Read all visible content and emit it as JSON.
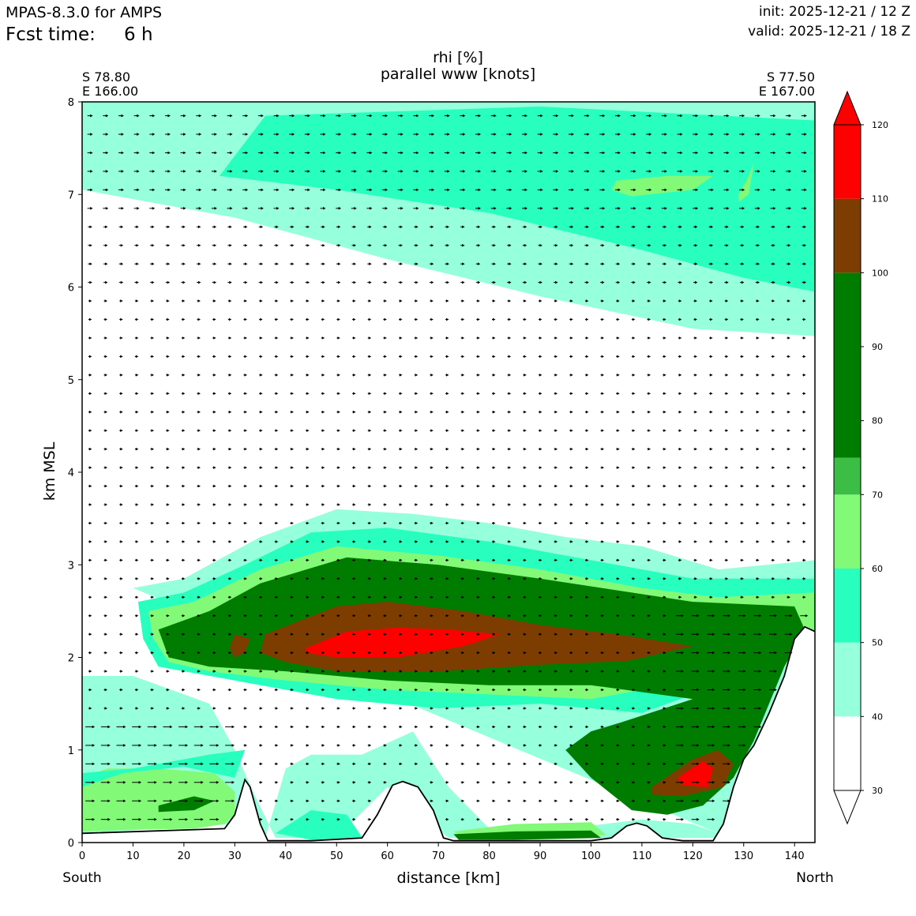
{
  "header": {
    "model": "MPAS-8.3.0 for AMPS",
    "fcst_label": "Fcst time:",
    "fcst_value": "6 h",
    "init": "init: 2025-12-21 / 12 Z",
    "valid": "valid: 2025-12-21 / 18 Z"
  },
  "colors": {
    "c30_40": "#ffffff",
    "c40_50": "#96ffdc",
    "c50_60": "#28ffbe",
    "c60_70": "#82fa78",
    "c70_75": "#3cbe46",
    "c75_100": "#007d00",
    "c100_110": "#7d3c00",
    "c110_120": "#ff0000"
  },
  "chart_data": {
    "type": "cross-section contour",
    "title_lines": [
      "rhi [%]",
      "parallel www [knots]"
    ],
    "xlabel": "distance [km]",
    "ylabel": "km MSL",
    "xlim": [
      0,
      144
    ],
    "ylim": [
      0,
      8
    ],
    "x_ticks": [
      0,
      10,
      20,
      30,
      40,
      50,
      60,
      70,
      80,
      90,
      100,
      110,
      120,
      130,
      140
    ],
    "y_ticks": [
      0,
      1,
      2,
      3,
      4,
      5,
      6,
      7,
      8
    ],
    "left_end": {
      "lat": "S 78.80",
      "lon": "E 166.00",
      "direction": "South"
    },
    "right_end": {
      "lat": "S 77.50",
      "lon": "E 167.00",
      "direction": "North"
    },
    "colorbar": {
      "ticks": [
        30,
        40,
        50,
        60,
        70,
        80,
        90,
        100,
        110,
        120
      ],
      "bounds": [
        30,
        40,
        50,
        60,
        70,
        75,
        100,
        110,
        120
      ],
      "colors": [
        "#ffffff",
        "#96ffdc",
        "#28ffbe",
        "#82fa78",
        "#3cbe46",
        "#007d00",
        "#7d3c00",
        "#ff0000"
      ],
      "extend": "both"
    },
    "terrain_km": [
      [
        0,
        0.1
      ],
      [
        28,
        0.15
      ],
      [
        30,
        0.3
      ],
      [
        32,
        0.68
      ],
      [
        33,
        0.6
      ],
      [
        35,
        0.2
      ],
      [
        36.5,
        0.02
      ],
      [
        38,
        0.02
      ],
      [
        45,
        0.02
      ],
      [
        55,
        0.05
      ],
      [
        58,
        0.3
      ],
      [
        61,
        0.62
      ],
      [
        63,
        0.66
      ],
      [
        66,
        0.6
      ],
      [
        69,
        0.35
      ],
      [
        71,
        0.05
      ],
      [
        73,
        0.02
      ],
      [
        100,
        0.02
      ],
      [
        104,
        0.05
      ],
      [
        107,
        0.18
      ],
      [
        109,
        0.21
      ],
      [
        111,
        0.18
      ],
      [
        114,
        0.05
      ],
      [
        118,
        0.02
      ],
      [
        124,
        0.02
      ],
      [
        126,
        0.2
      ],
      [
        128,
        0.6
      ],
      [
        130,
        0.9
      ],
      [
        132,
        1.05
      ],
      [
        135,
        1.4
      ],
      [
        138,
        1.8
      ],
      [
        140,
        2.2
      ],
      [
        142,
        2.33
      ],
      [
        144,
        2.28
      ]
    ],
    "rhi_polygons_km": [
      {
        "level": "40-50",
        "points": [
          [
            0,
            8
          ],
          [
            144,
            8
          ],
          [
            144,
            5.47
          ],
          [
            120,
            5.55
          ],
          [
            90,
            5.9
          ],
          [
            60,
            6.3
          ],
          [
            30,
            6.75
          ],
          [
            10,
            6.95
          ],
          [
            0,
            7.05
          ]
        ]
      },
      {
        "level": "50-60",
        "points": [
          [
            36,
            7.85
          ],
          [
            90,
            7.95
          ],
          [
            144,
            7.8
          ],
          [
            144,
            5.95
          ],
          [
            130,
            6.1
          ],
          [
            110,
            6.4
          ],
          [
            80,
            6.8
          ],
          [
            50,
            7.05
          ],
          [
            27,
            7.2
          ]
        ]
      },
      {
        "level": "60-70",
        "points": [
          [
            105,
            7.15
          ],
          [
            115,
            7.2
          ],
          [
            124,
            7.2
          ],
          [
            120,
            7.05
          ],
          [
            108,
            6.98
          ],
          [
            104,
            7.05
          ]
        ]
      },
      {
        "level": "60-70",
        "points": [
          [
            129,
            7.0
          ],
          [
            131,
            7.2
          ],
          [
            132,
            7.35
          ],
          [
            131,
            7.0
          ],
          [
            129,
            6.92
          ]
        ]
      },
      {
        "level": "40-50",
        "points": [
          [
            10,
            2.75
          ],
          [
            20,
            2.85
          ],
          [
            35,
            3.3
          ],
          [
            50,
            3.6
          ],
          [
            65,
            3.55
          ],
          [
            80,
            3.45
          ],
          [
            95,
            3.3
          ],
          [
            110,
            3.2
          ],
          [
            125,
            2.95
          ],
          [
            144,
            3.05
          ],
          [
            144,
            0.05
          ],
          [
            72,
            0.05
          ],
          [
            60,
            0.6
          ],
          [
            50,
            0.05
          ],
          [
            38,
            0.05
          ],
          [
            34,
            0.5
          ],
          [
            30,
            1.0
          ],
          [
            25,
            1.5
          ],
          [
            10,
            1.8
          ],
          [
            0,
            1.8
          ],
          [
            0,
            0.1
          ],
          [
            30,
            0.2
          ],
          [
            32,
            0.7
          ],
          [
            36,
            0.05
          ],
          [
            40,
            0.8
          ],
          [
            45,
            0.95
          ],
          [
            55,
            0.95
          ],
          [
            65,
            1.2
          ],
          [
            72,
            0.6
          ],
          [
            80,
            0.15
          ],
          [
            95,
            0.15
          ],
          [
            110,
            0.25
          ],
          [
            120,
            0.2
          ],
          [
            125,
            0.1
          ]
        ]
      },
      {
        "level": "50-60",
        "points": [
          [
            11,
            2.6
          ],
          [
            20,
            2.7
          ],
          [
            32,
            3.0
          ],
          [
            45,
            3.35
          ],
          [
            60,
            3.4
          ],
          [
            80,
            3.25
          ],
          [
            100,
            3.05
          ],
          [
            120,
            2.85
          ],
          [
            144,
            2.85
          ],
          [
            144,
            2.35
          ],
          [
            130,
            2.0
          ],
          [
            125,
            1.7
          ],
          [
            110,
            1.4
          ],
          [
            90,
            1.5
          ],
          [
            70,
            1.45
          ],
          [
            50,
            1.55
          ],
          [
            30,
            1.75
          ],
          [
            15,
            1.9
          ],
          [
            12,
            2.2
          ]
        ]
      },
      {
        "level": "60-70",
        "points": [
          [
            13,
            2.5
          ],
          [
            22,
            2.6
          ],
          [
            35,
            2.95
          ],
          [
            50,
            3.2
          ],
          [
            70,
            3.1
          ],
          [
            90,
            2.95
          ],
          [
            110,
            2.75
          ],
          [
            125,
            2.65
          ],
          [
            144,
            2.7
          ],
          [
            144,
            2.3
          ],
          [
            132,
            2.0
          ],
          [
            120,
            1.75
          ],
          [
            100,
            1.55
          ],
          [
            80,
            1.6
          ],
          [
            60,
            1.65
          ],
          [
            40,
            1.75
          ],
          [
            25,
            1.85
          ],
          [
            17,
            1.95
          ],
          [
            14,
            2.2
          ]
        ]
      },
      {
        "level": "75-100",
        "points": [
          [
            15,
            2.3
          ],
          [
            25,
            2.5
          ],
          [
            35,
            2.8
          ],
          [
            52,
            3.08
          ],
          [
            70,
            3.0
          ],
          [
            90,
            2.85
          ],
          [
            108,
            2.7
          ],
          [
            120,
            2.6
          ],
          [
            140,
            2.55
          ],
          [
            142,
            2.3
          ],
          [
            138,
            1.9
          ],
          [
            132,
            1.1
          ],
          [
            128,
            0.7
          ],
          [
            122,
            0.4
          ],
          [
            115,
            0.3
          ],
          [
            108,
            0.35
          ],
          [
            100,
            0.7
          ],
          [
            95,
            1.0
          ],
          [
            100,
            1.2
          ],
          [
            106,
            1.3
          ],
          [
            120,
            1.55
          ],
          [
            100,
            1.7
          ],
          [
            80,
            1.7
          ],
          [
            60,
            1.75
          ],
          [
            40,
            1.85
          ],
          [
            25,
            1.9
          ],
          [
            17,
            2.0
          ]
        ]
      },
      {
        "level": "100-110",
        "points": [
          [
            36,
            2.25
          ],
          [
            50,
            2.55
          ],
          [
            60,
            2.6
          ],
          [
            75,
            2.5
          ],
          [
            90,
            2.35
          ],
          [
            105,
            2.25
          ],
          [
            120,
            2.12
          ],
          [
            107,
            1.96
          ],
          [
            90,
            1.92
          ],
          [
            70,
            1.85
          ],
          [
            50,
            1.85
          ],
          [
            40,
            1.95
          ],
          [
            35,
            2.05
          ]
        ]
      },
      {
        "level": "100-110",
        "points": [
          [
            30,
            2.25
          ],
          [
            33,
            2.2
          ],
          [
            32,
            2.05
          ],
          [
            30,
            2.0
          ],
          [
            29,
            2.1
          ]
        ]
      },
      {
        "level": "110-120",
        "points": [
          [
            44,
            2.1
          ],
          [
            52,
            2.28
          ],
          [
            62,
            2.32
          ],
          [
            72,
            2.3
          ],
          [
            82,
            2.25
          ],
          [
            75,
            2.12
          ],
          [
            62,
            2.0
          ],
          [
            50,
            2.0
          ],
          [
            44,
            2.05
          ]
        ]
      },
      {
        "level": "100-110",
        "points": [
          [
            112,
            0.6
          ],
          [
            120,
            0.9
          ],
          [
            125,
            1.0
          ],
          [
            128,
            0.85
          ],
          [
            126,
            0.6
          ],
          [
            118,
            0.5
          ],
          [
            112,
            0.52
          ]
        ]
      },
      {
        "level": "110-120",
        "points": [
          [
            117,
            0.7
          ],
          [
            122,
            0.88
          ],
          [
            124,
            0.8
          ],
          [
            123,
            0.6
          ],
          [
            118,
            0.62
          ]
        ]
      },
      {
        "level": "60-70",
        "points": [
          [
            0,
            0.12
          ],
          [
            12,
            0.14
          ],
          [
            22,
            0.15
          ],
          [
            28,
            0.2
          ],
          [
            30,
            0.3
          ],
          [
            30,
            0.55
          ],
          [
            26,
            0.75
          ],
          [
            15,
            0.8
          ],
          [
            5,
            0.8
          ],
          [
            0,
            0.7
          ]
        ]
      },
      {
        "level": "75-100",
        "points": [
          [
            15,
            0.4
          ],
          [
            22,
            0.5
          ],
          [
            26,
            0.45
          ],
          [
            22,
            0.35
          ],
          [
            15,
            0.33
          ]
        ]
      },
      {
        "level": "50-60",
        "points": [
          [
            0,
            0.75
          ],
          [
            10,
            0.8
          ],
          [
            25,
            0.95
          ],
          [
            32,
            1.0
          ],
          [
            30,
            0.7
          ],
          [
            20,
            0.82
          ],
          [
            8,
            0.75
          ],
          [
            0,
            0.6
          ]
        ]
      },
      {
        "level": "50-60",
        "points": [
          [
            38,
            0.1
          ],
          [
            45,
            0.35
          ],
          [
            52,
            0.3
          ],
          [
            55,
            0.06
          ],
          [
            45,
            0.03
          ]
        ]
      },
      {
        "level": "60-70",
        "points": [
          [
            73,
            0.12
          ],
          [
            85,
            0.2
          ],
          [
            100,
            0.22
          ],
          [
            103,
            0.08
          ],
          [
            90,
            0.05
          ],
          [
            75,
            0.05
          ]
        ]
      },
      {
        "level": "75-100",
        "points": [
          [
            73,
            0.09
          ],
          [
            85,
            0.12
          ],
          [
            100,
            0.13
          ],
          [
            102,
            0.05
          ],
          [
            85,
            0.03
          ],
          [
            74,
            0.03
          ]
        ]
      }
    ],
    "wind_field": "parallel-wind arrows on a regular grid, mostly right-pointing and short, longer near the southern surface and northern slope"
  }
}
